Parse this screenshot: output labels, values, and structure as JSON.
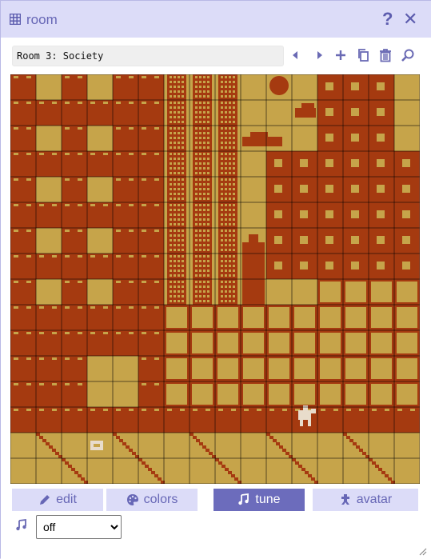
{
  "window": {
    "title": "room",
    "title_icon": "grid-icon",
    "help_icon": "question-icon",
    "close_icon": "close-icon"
  },
  "room": {
    "name_value": "Room 3: Society"
  },
  "toolbar": {
    "icons": [
      "previous-room-icon",
      "next-room-icon",
      "add-room-icon",
      "duplicate-room-icon",
      "delete-room-icon",
      "find-room-icon"
    ]
  },
  "palette": {
    "background": "#c6a44a",
    "tile": "#a53a10",
    "avatar": "#e8dccb",
    "window_frame": "#dcdcf8",
    "accent": "#6c6cbc"
  },
  "tabs": [
    {
      "label": "edit",
      "icon": "pencil-icon",
      "active": false
    },
    {
      "label": "colors",
      "icon": "palette-icon",
      "active": false
    },
    {
      "label": "tune",
      "icon": "music-note-icon",
      "active": true
    },
    {
      "label": "avatar",
      "icon": "avatar-icon",
      "active": false
    }
  ],
  "tune": {
    "icon": "music-note-icon",
    "selected": "off"
  }
}
